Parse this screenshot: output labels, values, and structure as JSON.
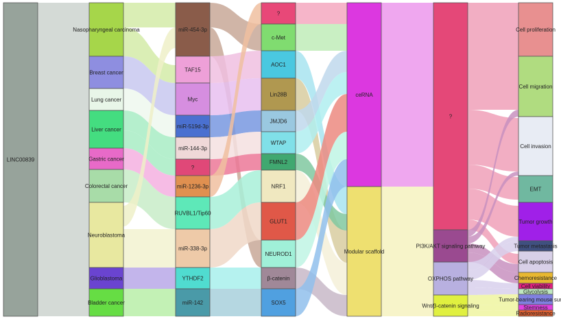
{
  "diagram": {
    "type": "sankey",
    "columns": [
      {
        "name": "lncRNA",
        "nodes": [
          {
            "label": "LINC00839",
            "color": "#97a39b"
          }
        ]
      },
      {
        "name": "cancer",
        "nodes": [
          {
            "label": "Nasopharyngeal carcinoma",
            "color": "#a6d64a"
          },
          {
            "label": "Breast cancer",
            "color": "#8e8ee0"
          },
          {
            "label": "Lung cancer",
            "color": "#e8f6e8"
          },
          {
            "label": "Liver cancer",
            "color": "#44dd80"
          },
          {
            "label": "Gastric cancer",
            "color": "#e86ac8"
          },
          {
            "label": "Colorectal cancer",
            "color": "#a8dca8"
          },
          {
            "label": "Neuroblastoma",
            "color": "#e8e8a0"
          },
          {
            "label": "Glioblastoma",
            "color": "#6a44d0"
          },
          {
            "label": "Bladder cancer",
            "color": "#66dd44"
          }
        ]
      },
      {
        "name": "interactor",
        "nodes": [
          {
            "label": "miR-454-3p",
            "color": "#8a5c4a"
          },
          {
            "label": "TAF15",
            "color": "#eea0d8"
          },
          {
            "label": "Myc",
            "color": "#d68ee0"
          },
          {
            "label": "miR-519d-3p",
            "color": "#4a70d0"
          },
          {
            "label": "miR-144-3p",
            "color": "#efd8d8"
          },
          {
            "label": "?",
            "color": "#e04878"
          },
          {
            "label": "miR-1236-3p",
            "color": "#e09050"
          },
          {
            "label": "RUVBL1/Tip60",
            "color": "#5ee8b8"
          },
          {
            "label": "miR-338-3p",
            "color": "#eecaa8"
          },
          {
            "label": "YTHDF2",
            "color": "#50dcd0"
          },
          {
            "label": "miR-142",
            "color": "#4a9aa8"
          }
        ]
      },
      {
        "name": "target",
        "nodes": [
          {
            "label": "?",
            "color": "#e84878"
          },
          {
            "label": "c-Met",
            "color": "#80dc70"
          },
          {
            "label": "AOC1",
            "color": "#4ac8e0"
          },
          {
            "label": "Lin28B",
            "color": "#b09850"
          },
          {
            "label": "JMJD6",
            "color": "#9ac8e0"
          },
          {
            "label": "WTAP",
            "color": "#80e0e8"
          },
          {
            "label": "FMNL2",
            "color": "#40a870"
          },
          {
            "label": "NRF1",
            "color": "#f0e8c0"
          },
          {
            "label": "GLUT1",
            "color": "#e05848"
          },
          {
            "label": "NEUROD1",
            "color": "#a0f0d8"
          },
          {
            "label": "β-catenin",
            "color": "#a08898"
          },
          {
            "label": "SOX5",
            "color": "#50a0e0"
          }
        ]
      },
      {
        "name": "mechanism",
        "nodes": [
          {
            "label": "ceRNA",
            "color": "#dc38e0"
          },
          {
            "label": "Modular scaffold",
            "color": "#eee070"
          }
        ]
      },
      {
        "name": "pathway",
        "nodes": [
          {
            "label": "?",
            "color": "#e44878"
          },
          {
            "label": "PI3K/AKT signaling pathway",
            "color": "#9a4a90"
          },
          {
            "label": "OXPHOS pathway",
            "color": "#b8b0e0"
          },
          {
            "label": "Wnt/β-catenin signaling",
            "color": "#e0f040"
          }
        ]
      },
      {
        "name": "outcome",
        "nodes": [
          {
            "label": "Cell proliferation",
            "color": "#e89090"
          },
          {
            "label": "Cell migration",
            "color": "#b0dc80"
          },
          {
            "label": "Cell invasion",
            "color": "#e8ecf4"
          },
          {
            "label": "EMT",
            "color": "#70b8a0"
          },
          {
            "label": "Tumor growth",
            "color": "#a020e8"
          },
          {
            "label": "Tumor metastasis",
            "color": "#405080"
          },
          {
            "label": "Cell apoptosis",
            "color": "#d8d0e8"
          },
          {
            "label": "Chemoresistance",
            "color": "#e8b830"
          },
          {
            "label": "Cell viability",
            "color": "#e02080"
          },
          {
            "label": "Glycolysis",
            "color": "#c0e8c0"
          },
          {
            "label": "Tumor-bearing mouse survival",
            "color": "#8080e0"
          },
          {
            "label": "Stemness",
            "color": "#e040e0"
          },
          {
            "label": "Radioresistance",
            "color": "#e06030"
          }
        ]
      }
    ]
  }
}
